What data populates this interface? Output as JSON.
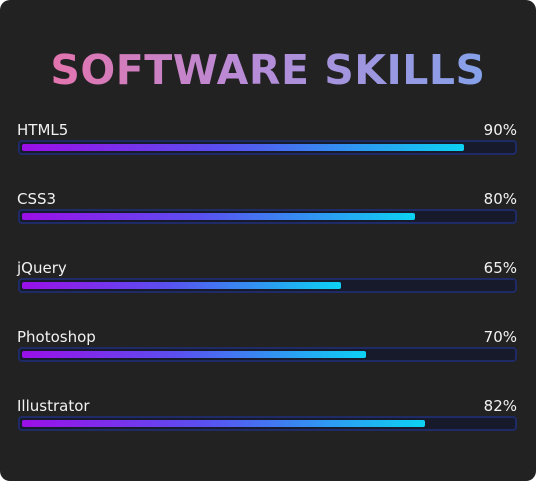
{
  "title": "SOFTWARE SKILLS",
  "skills": [
    {
      "name": "HTML5",
      "percent_label": "90%",
      "value": 0.9
    },
    {
      "name": "CSS3",
      "percent_label": "80%",
      "value": 0.8
    },
    {
      "name": "jQuery",
      "percent_label": "65%",
      "value": 0.65
    },
    {
      "name": "Photoshop",
      "percent_label": "70%",
      "value": 0.7
    },
    {
      "name": "Illustrator",
      "percent_label": "82%",
      "value": 0.82
    }
  ],
  "colors": {
    "background": "#222222",
    "title_gradient_start": "#ee6ea3",
    "title_gradient_end": "#7aa6ee",
    "bar_gradient_start": "#9b0fe8",
    "bar_gradient_end": "#0cd2f3",
    "track_border": "#1f2b66"
  }
}
